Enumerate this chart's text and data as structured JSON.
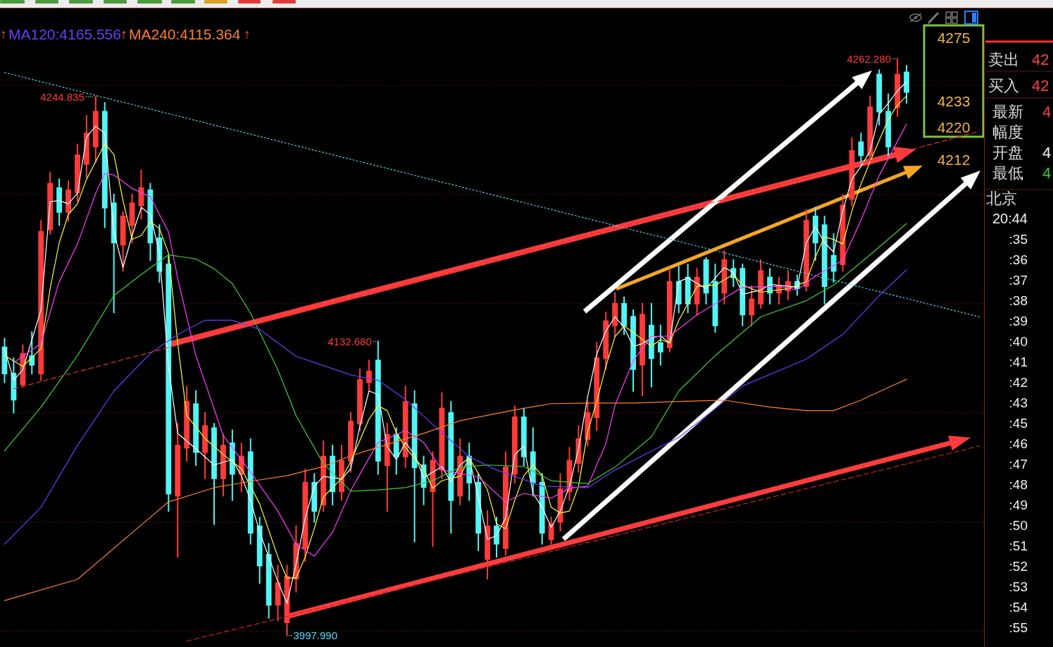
{
  "chart_data": {
    "type": "candlestick",
    "categories": [
      null,
      null,
      null,
      null,
      null,
      null,
      null,
      null,
      null,
      null,
      null,
      null,
      null,
      null,
      null,
      null,
      null,
      null,
      null,
      null,
      null,
      null,
      null,
      null,
      null,
      null,
      null,
      null,
      null,
      null,
      null,
      null,
      null,
      null,
      null,
      null,
      null,
      null,
      null,
      null,
      null,
      null,
      null,
      null,
      null,
      null,
      null,
      null,
      null,
      null,
      null,
      null,
      null,
      null,
      null,
      null,
      null,
      null,
      null,
      null,
      null,
      null,
      null,
      null,
      null,
      null,
      null,
      null,
      null,
      null,
      null,
      null,
      null,
      null,
      null,
      null,
      null,
      null,
      null,
      null,
      null,
      null,
      null,
      null,
      null,
      null,
      null,
      null,
      null,
      null,
      null,
      null,
      null,
      null,
      null,
      null,
      null,
      null,
      null,
      null,
      null,
      null,
      null,
      null,
      null,
      null,
      null,
      null
    ],
    "ohlc": [
      [
        4130,
        4134,
        4114,
        4118
      ],
      [
        4118,
        4125,
        4100,
        4106
      ],
      [
        4113,
        4131,
        4112,
        4127
      ],
      [
        4126,
        4137,
        4118,
        4122
      ],
      [
        4118,
        4188,
        4115,
        4183
      ],
      [
        4184,
        4210,
        4182,
        4205
      ],
      [
        4203,
        4207,
        4186,
        4192
      ],
      [
        4192,
        4206,
        4188,
        4202
      ],
      [
        4201,
        4223,
        4197,
        4218
      ],
      [
        4214,
        4236,
        4208,
        4228
      ],
      [
        4222,
        4244.835,
        4215,
        4238
      ],
      [
        4238,
        4242,
        4185,
        4194
      ],
      [
        4196,
        4200,
        4146,
        4178
      ],
      [
        4177,
        4192,
        4165,
        4190
      ],
      [
        4186,
        4200,
        4178,
        4196
      ],
      [
        4195,
        4211,
        4189,
        4203
      ],
      [
        4202,
        4205,
        4170,
        4178
      ],
      [
        4180,
        4186,
        4160,
        4165
      ],
      [
        4168,
        4172,
        4055,
        4063
      ],
      [
        4062,
        4095,
        4034,
        4085
      ],
      [
        4084,
        4112,
        4078,
        4105
      ],
      [
        4104,
        4110,
        4076,
        4082
      ],
      [
        4082,
        4100,
        4070,
        4094
      ],
      [
        4093,
        4095,
        4049,
        4070
      ],
      [
        4070,
        4090,
        4062,
        4085
      ],
      [
        4086,
        4092,
        4060,
        4072
      ],
      [
        4072,
        4086,
        4064,
        4080
      ],
      [
        4082,
        4088,
        4040,
        4045
      ],
      [
        4048,
        4052,
        4022,
        4030
      ],
      [
        4035,
        4040,
        4006,
        4012
      ],
      [
        4012,
        4030,
        4005,
        4022
      ],
      [
        4004,
        4030,
        3997.99,
        4025
      ],
      [
        4024,
        4048,
        4018,
        4040
      ],
      [
        4038,
        4074,
        4032,
        4068
      ],
      [
        4068,
        4072,
        4050,
        4055
      ],
      [
        4058,
        4087,
        4055,
        4080
      ],
      [
        4080,
        4085,
        4058,
        4064
      ],
      [
        4064,
        4085,
        4060,
        4078
      ],
      [
        4078,
        4100,
        4073,
        4096
      ],
      [
        4095,
        4120,
        4092,
        4115
      ],
      [
        4114,
        4124,
        4110,
        4119
      ],
      [
        4124,
        4132.68,
        4072,
        4078
      ],
      [
        4076,
        4095,
        4055,
        4090
      ],
      [
        4090,
        4093,
        4072,
        4080
      ],
      [
        4080,
        4112,
        4075,
        4105
      ],
      [
        4104,
        4110,
        4041,
        4075
      ],
      [
        4076,
        4080,
        4058,
        4066
      ],
      [
        4064,
        4082,
        4039,
        4078
      ],
      [
        4074,
        4109,
        4070,
        4102
      ],
      [
        4100,
        4105,
        4045,
        4060
      ],
      [
        4062,
        4088,
        4058,
        4080
      ],
      [
        4080,
        4086,
        4060,
        4068
      ],
      [
        4068,
        4072,
        4037,
        4045
      ],
      [
        4033,
        4055,
        4024,
        4048
      ],
      [
        4048,
        4052,
        4034,
        4040
      ],
      [
        4038,
        4082,
        4035,
        4075
      ],
      [
        4072,
        4103,
        4068,
        4098
      ],
      [
        4098,
        4102,
        4076,
        4080
      ],
      [
        4082,
        4093,
        4062,
        4068
      ],
      [
        4068,
        4072,
        4040,
        4045
      ],
      [
        4042,
        4052,
        4040,
        4049
      ],
      [
        4050,
        4072,
        4046,
        4065
      ],
      [
        4064,
        4084,
        4060,
        4078
      ],
      [
        4077,
        4094,
        4073,
        4088
      ],
      [
        4088,
        4105,
        4085,
        4100
      ],
      [
        4098,
        4132,
        4092,
        4125
      ],
      [
        4125,
        4146,
        4120,
        4142
      ],
      [
        4140,
        4155,
        4135,
        4150
      ],
      [
        4150,
        4153,
        4136,
        4140
      ],
      [
        4144,
        4147,
        4110,
        4120
      ],
      [
        4122,
        4150,
        4108,
        4145
      ],
      [
        4140,
        4150,
        4112,
        4125
      ],
      [
        4132,
        4140,
        4122,
        4128
      ],
      [
        4130,
        4166,
        4128,
        4160
      ],
      [
        4160,
        4167,
        4146,
        4150
      ],
      [
        4162,
        4168,
        4146,
        4150
      ],
      [
        4150,
        4166,
        4145,
        4162
      ],
      [
        4170,
        4171,
        4150,
        4155
      ],
      [
        4160,
        4168,
        4137,
        4140
      ],
      [
        4155,
        4174,
        4150,
        4170
      ],
      [
        4166,
        4170,
        4158,
        4162
      ],
      [
        4166,
        4168,
        4140,
        4145
      ],
      [
        4145,
        4158,
        4140,
        4152
      ],
      [
        4150,
        4170,
        4148,
        4165
      ],
      [
        4162,
        4166,
        4150,
        4155
      ],
      [
        4155,
        4162,
        4150,
        4158
      ],
      [
        4156,
        4165,
        4152,
        4160
      ],
      [
        4160,
        4163,
        4154,
        4157
      ],
      [
        4158,
        4193,
        4156,
        4188
      ],
      [
        4190,
        4194,
        4170,
        4178
      ],
      [
        4186,
        4190,
        4150,
        4158
      ],
      [
        4172,
        4182,
        4160,
        4165
      ],
      [
        4168,
        4200,
        4165,
        4195
      ],
      [
        4198,
        4226,
        4195,
        4220
      ],
      [
        4224,
        4228,
        4214,
        4218
      ],
      [
        4218,
        4245,
        4214,
        4240
      ],
      [
        4255,
        4257,
        4232,
        4238
      ],
      [
        4238,
        4246,
        4218,
        4222
      ],
      [
        4240,
        4262.28,
        4236,
        4255
      ],
      [
        4256,
        4259,
        4242,
        4247
      ],
      null,
      null,
      null,
      null,
      null,
      null,
      null,
      null
    ],
    "series": [
      {
        "type": "line",
        "color": "#ffffff",
        "values": [
          4129.4,
          4114.9,
          4119.7,
          null,
          4147.2,
          4196.7,
          4197.3,
          4195.7,
          4200.6,
          4226.4,
          4231.3,
          4228.1,
          4182.8,
          4166.6,
          4181.2,
          4194.1,
          4190.9,
          4173.1,
          4121.3,
          4090.6,
          null,
          4083.5,
          null,
          4076.1,
          null,
          4078.6,
          4071.2,
          4059.9,
          4045.3,
          null,
          4022.7,
          4012.7,
          4030.8,
          4051.8,
          4066.4,
          4070.9,
          null,
          4069.6,
          4074.4,
          4093.8,
          4110.0,
          4108.4,
          4084.5,
          4078.6,
          4086.4,
          4080.9,
          4070.2,
          null,
          4075.4,
          4068.3,
          4076.1,
          4079.3,
          4061.5,
          4042.1,
          4043.7,
          4051.8,
          4080.9,
          4084.8,
          4063.1,
          4056.7,
          4047.6,
          4055.0,
          4066.4,
          4083.5,
          4107.4,
          4126.8,
          4137.5,
          4144.0,
          4139.1,
          4130.4,
          4131.7,
          4134.3,
          4135.2,
          4132.0,
          4160.1,
          4161.8,
          null,
          4156.9,
          null,
          4166.6,
          4164.3,
          4154.3,
          null,
          4156.3,
          4158.8,
          null,
          null,
          4157.6,
          4177.9,
          4185.4,
          4177.9,
          4173.7,
          4192.5,
          4207.0,
          4212.9,
          4219.9,
          4236.8,
          4241.9,
          4247.5,
          4251.7,
          null,
          null,
          null,
          null,
          null,
          null,
          null,
          null
        ]
      },
      {
        "type": "line",
        "color": "#ffff3c",
        "values": [
          4126.2,
          null,
          4121.3,
          null,
          4129.4,
          4156.9,
          4177.9,
          4190.9,
          4195.7,
          4207.0,
          4215.1,
          4223.2,
          4218.4,
          4197.3,
          4179.5,
          4181.2,
          4187.6,
          4184.4,
          4173.1,
          4132.0,
          4098.7,
          null,
          4088.3,
          null,
          4080.9,
          null,
          4074.4,
          null,
          4058.3,
          null,
          4034.0,
          4024.3,
          4024.3,
          4034.0,
          4047.0,
          4061.5,
          null,
          4069.9,
          4077.7,
          4087.4,
          4097.1,
          4103.2,
          4101.0,
          4090.9,
          4084.1,
          null,
          4074.4,
          4065.4,
          4068.9,
          null,
          4070.9,
          4079.3,
          4072.2,
          4064.7,
          4049.2,
          4046.9,
          4059.9,
          4071.2,
          4076.1,
          4071.2,
          4056.7,
          4054.1,
          4055.0,
          4066.4,
          4091.3,
          4105.2,
          4121.3,
          4134.9,
          4139.8,
          4136.9,
          null,
          4130.4,
          4133.6,
          4132.0,
          4142.3,
          null,
          4157.9,
          null,
          4158.5,
          null,
          4163.4,
          4158.5,
          null,
          4155.3,
          null,
          null,
          4156.9,
          null,
          4160.1,
          4171.5,
          4180.5,
          4179.5,
          4177.3,
          4192.5,
          4204.8,
          4215.1,
          4224.8,
          4234.5,
          4241.0,
          4245.2,
          null,
          null,
          null,
          null,
          null,
          null,
          null,
          null
        ]
      },
      {
        "type": "line",
        "color": "#ff3cff",
        "values": [
          null,
          4123.0,
          null,
          null,
          4131.7,
          null,
          4160.1,
          null,
          4177.3,
          null,
          4200.6,
          4209.6,
          4209.0,
          null,
          4202.8,
          null,
          4199.0,
          null,
          4182.8,
          4161.7,
          null,
          4126.2,
          null,
          null,
          4089.6,
          null,
          null,
          4072.8,
          null,
          null,
          4055.0,
          null,
          4039.8,
          null,
          4034.3,
          null,
          4045.3,
          null,
          4064.4,
          null,
          4079.3,
          4086.4,
          null,
          null,
          4091.9,
          null,
          4086.4,
          null,
          4073.8,
          null,
          4072.2,
          null,
          4070.6,
          null,
          null,
          4059.2,
          null,
          4063.1,
          null,
          null,
          4060.9,
          null,
          4065.4,
          null,
          4066.4,
          null,
          4085.8,
          4103.5,
          null,
          4123.9,
          null,
          4134.9,
          null,
          4135.2,
          null,
          null,
          4144.9,
          null,
          null,
          null,
          null,
          4157.6,
          null,
          null,
          null,
          4157.9,
          null,
          4156.3,
          null,
          4162.7,
          null,
          null,
          4169.8,
          null,
          4188.3,
          null,
          4208.7,
          null,
          null,
          4232.3,
          null,
          null,
          null,
          null,
          null,
          null,
          null,
          null
        ]
      },
      {
        "type": "line",
        "color": "#3ccf3c",
        "values": [
          4082.5,
          null,
          null,
          null,
          4102.6,
          null,
          null,
          null,
          4126.2,
          null,
          null,
          null,
          4153.7,
          null,
          null,
          4163.4,
          null,
          null,
          4172.4,
          null,
          null,
          4170.5,
          null,
          4166.0,
          null,
          4159.2,
          null,
          4145.6,
          null,
          null,
          4119.7,
          null,
          4098.7,
          null,
          null,
          4076.7,
          null,
          null,
          4064.1,
          null,
          null,
          4064.7,
          null,
          null,
          4065.7,
          null,
          null,
          4068.9,
          null,
          null,
          4075.1,
          null,
          null,
          4076.1,
          null,
          null,
          null,
          4075.4,
          null,
          null,
          4068.9,
          null,
          null,
          null,
          4067.6,
          null,
          null,
          4075.1,
          null,
          null,
          null,
          4089.0,
          null,
          null,
          4110.0,
          null,
          null,
          null,
          4126.2,
          null,
          null,
          null,
          null,
          4144.0,
          null,
          null,
          null,
          null,
          4151.4,
          null,
          null,
          4158.5,
          null,
          null,
          null,
          4172.4,
          null,
          null,
          null,
          4186.7,
          null,
          null,
          null,
          null,
          null,
          null,
          null,
          null
        ]
      },
      {
        "type": "line",
        "name": "MA120:4165.556",
        "color": "#6a3cff",
        "values": [
          4039.8,
          null,
          null,
          null,
          4056.7,
          null,
          null,
          null,
          4085.1,
          null,
          null,
          null,
          4110.0,
          null,
          null,
          null,
          4127.2,
          null,
          null,
          4135.9,
          null,
          null,
          4142.4,
          null,
          null,
          4142.4,
          null,
          null,
          4138.2,
          null,
          null,
          null,
          4125.9,
          null,
          null,
          null,
          null,
          null,
          4117.4,
          null,
          null,
          4114.9,
          null,
          null,
          4106.1,
          null,
          null,
          null,
          4090.9,
          null,
          null,
          4079.9,
          null,
          null,
          4073.8,
          null,
          null,
          null,
          null,
          4066.4,
          null,
          null,
          null,
          null,
          4065.7,
          null,
          null,
          4073.8,
          null,
          null,
          null,
          4082.5,
          null,
          null,
          4088.7,
          null,
          null,
          null,
          4101.9,
          null,
          null,
          4112.3,
          null,
          null,
          null,
          null,
          null,
          null,
          4124.6,
          null,
          null,
          null,
          4135.9,
          null,
          null,
          null,
          4153.7,
          null,
          null,
          4165.556,
          null,
          null,
          null,
          null,
          null,
          null,
          null,
          null
        ]
      },
      {
        "type": "line",
        "name": "MA240:4115.364",
        "color": "#ff8028",
        "values": [
          4014.0,
          null,
          null,
          null,
          null,
          null,
          null,
          null,
          4023.7,
          null,
          null,
          null,
          null,
          null,
          null,
          4048.6,
          null,
          null,
          4059.2,
          null,
          null,
          null,
          null,
          4065.7,
          null,
          null,
          null,
          4068.6,
          null,
          null,
          null,
          4071.2,
          null,
          null,
          null,
          4075.4,
          null,
          null,
          4080.3,
          null,
          null,
          4084.2,
          null,
          null,
          null,
          null,
          4090.6,
          null,
          null,
          null,
          4096.4,
          null,
          null,
          null,
          null,
          null,
          4101.3,
          null,
          null,
          null,
          4104.2,
          null,
          null,
          null,
          4104.5,
          null,
          null,
          null,
          null,
          4104.5,
          null,
          null,
          null,
          null,
          4105.2,
          null,
          null,
          null,
          null,
          4105.8,
          null,
          null,
          null,
          null,
          4102.6,
          null,
          null,
          null,
          4101.0,
          null,
          null,
          4101.0,
          null,
          null,
          4105.8,
          null,
          4109.7,
          null,
          null,
          4115.364,
          null,
          null,
          null,
          null,
          null,
          null,
          null,
          null
        ]
      },
      {
        "type": "line",
        "color": "#4fd2e6",
        "line_style": "dotted",
        "values": [
          4255.9,
          4254.9,
          4253.8,
          4252.8,
          4251.7,
          4250.7,
          4249.6,
          4248.6,
          4247.5,
          4246.5,
          4245.4,
          4244.4,
          4243.3,
          4242.3,
          4241.3,
          4240.2,
          4239.2,
          4238.1,
          4237.1,
          4236.0,
          4235.0,
          4233.9,
          4232.9,
          4231.8,
          4230.8,
          4229.8,
          4228.7,
          4227.7,
          4226.6,
          4225.6,
          4224.5,
          4223.5,
          4222.4,
          4221.4,
          4220.3,
          4219.3,
          4218.3,
          4217.2,
          4216.2,
          4215.1,
          4214.1,
          4213.0,
          4212.0,
          4210.9,
          4209.9,
          4208.8,
          4207.8,
          4206.7,
          4205.7,
          4204.7,
          4203.6,
          4202.6,
          4201.5,
          4200.5,
          4199.4,
          4198.4,
          4197.3,
          4196.3,
          4195.2,
          4194.2,
          4193.2,
          4192.1,
          4191.1,
          4190.0,
          4189.0,
          4187.9,
          4186.9,
          4185.8,
          4184.8,
          4183.7,
          4182.7,
          4181.6,
          4180.6,
          4179.6,
          4178.5,
          4177.5,
          4176.4,
          4175.4,
          4174.3,
          4173.3,
          4172.2,
          4171.2,
          4170.1,
          4169.1,
          4168.1,
          4167.0,
          4166.0,
          4164.9,
          4163.9,
          4162.8,
          4161.8,
          4160.7,
          4159.7,
          4158.6,
          4157.6,
          4156.5,
          4155.5,
          4154.5,
          4153.4,
          4152.4,
          4151.3,
          4150.3,
          4149.2,
          4148.2,
          4147.1,
          4146.1,
          4145.0,
          4144.0
        ]
      },
      {
        "type": "line",
        "color": "#e03030",
        "line_style": "dashed",
        "values": [
          null,
          4111.0,
          4112.1,
          4113.2,
          4114.3,
          4115.5,
          4116.6,
          4117.7,
          4118.8,
          4119.9,
          4121.0,
          4122.1,
          4123.2,
          4124.4,
          4125.5,
          4126.6,
          4127.7,
          4128.8,
          4129.9,
          4131.0,
          4132.2,
          4133.3,
          4134.4,
          4135.5,
          4136.6,
          4137.7,
          4138.8,
          4139.9,
          4141.1,
          4142.2,
          4143.3,
          4144.4,
          4145.5,
          4146.6,
          4147.7,
          4148.8,
          4150.0,
          4151.1,
          4152.2,
          4153.3,
          4154.4,
          4155.5,
          4156.6,
          4157.8,
          4158.9,
          4160.0,
          4161.1,
          4162.2,
          4163.3,
          4164.4,
          4165.5,
          4166.7,
          4167.8,
          4168.9,
          4170.0,
          4171.1,
          4172.2,
          4173.3,
          4174.5,
          4175.6,
          4176.7,
          4177.8,
          4178.9,
          4180.0,
          4181.1,
          4182.2,
          4183.4,
          4184.5,
          4185.6,
          4186.7,
          4187.8,
          4188.9,
          4190.0,
          4191.2,
          4192.3,
          4193.4,
          4194.5,
          4195.6,
          4196.7,
          4197.8,
          4198.9,
          4200.1,
          4201.2,
          4202.3,
          4203.4,
          4204.5,
          4205.6,
          4206.7,
          4207.8,
          4209.0,
          4210.1,
          4211.2,
          4212.3,
          4213.4,
          4214.5,
          4215.6,
          4216.7,
          4217.9,
          4219.0,
          4220.1,
          4221.2,
          4222.3,
          4223.4,
          4224.5,
          4225.7,
          4226.8,
          4227.9,
          4229.0
        ]
      },
      {
        "type": "line",
        "color": "#c42222",
        "line_style": "dashed",
        "values": [
          null,
          null,
          null,
          null,
          null,
          null,
          null,
          null,
          null,
          null,
          null,
          null,
          null,
          null,
          null,
          null,
          null,
          null,
          null,
          null,
          3995.4,
          3996.4,
          3997.5,
          3998.5,
          3999.5,
          4000.5,
          4001.6,
          4002.6,
          4003.6,
          4004.6,
          4005.7,
          4006.7,
          4007.7,
          4008.8,
          4009.8,
          4010.8,
          4011.8,
          4012.9,
          4013.9,
          4014.9,
          4016.0,
          4017.0,
          4018.0,
          4019.0,
          4020.1,
          4021.1,
          4022.1,
          4023.1,
          4024.2,
          4025.2,
          4026.2,
          4027.3,
          4028.3,
          4029.3,
          4030.3,
          4031.4,
          4032.4,
          4033.4,
          4034.4,
          4035.5,
          4036.5,
          4037.5,
          4038.6,
          4039.6,
          4040.6,
          4041.6,
          4042.7,
          4043.7,
          4044.7,
          4045.8,
          4046.8,
          4047.8,
          4048.8,
          4049.9,
          4050.9,
          4051.9,
          4052.9,
          4054.0,
          4055.0,
          4056.0,
          4057.1,
          4058.1,
          4059.1,
          4060.1,
          4061.2,
          4062.2,
          4063.2,
          4064.2,
          4065.3,
          4066.3,
          4067.3,
          4068.4,
          4069.4,
          4070.4,
          4071.4,
          4072.5,
          4073.5,
          4074.5,
          4075.6,
          4076.6,
          4077.6,
          4078.6,
          4079.7,
          4080.7,
          4081.7,
          4082.7,
          4083.8,
          4084.8
        ]
      }
    ],
    "yticks": [
      {
        "value": 4000,
        "label": null
      },
      {
        "value": 4050,
        "label": null
      },
      {
        "value": 4100,
        "label": null
      },
      {
        "value": 4150,
        "label": null
      },
      {
        "value": 4200,
        "label": null
      },
      {
        "value": 4250,
        "label": null
      }
    ],
    "grid": "y",
    "legend": "top left",
    "annotations": [
      "4244.835",
      "4132.680",
      "4262.280",
      "3997.990",
      "4275",
      "4233",
      "4220",
      "4212",
      "↑",
      "↑",
      "↑",
      "卖出",
      "42",
      "买入",
      "42",
      "最新",
      "4",
      "幅度",
      "开盘",
      "4",
      "最低",
      "4",
      "北京",
      "20:44",
      ":35",
      ":36",
      ":37",
      ":38",
      ":39",
      ":40",
      ":41",
      ":42",
      ":43",
      ":45",
      ":46",
      ":47",
      ":48",
      ":49",
      ":50",
      ":51",
      ":52",
      ":53",
      ":54",
      ":55"
    ]
  }
}
